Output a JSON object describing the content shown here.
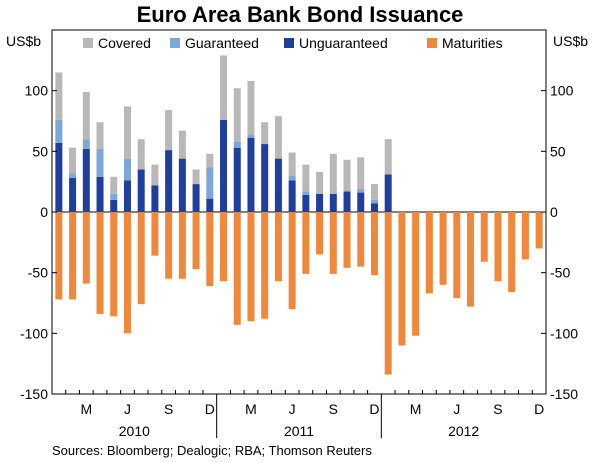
{
  "chart_data": {
    "type": "bar",
    "title": "Euro Area Bank Bond Issuance",
    "ylabel_left": "US$b",
    "ylabel_right": "US$b",
    "ylim": [
      -150,
      150
    ],
    "yticks": [
      100,
      50,
      0,
      -50,
      -100,
      -150
    ],
    "x_month_labels": [
      {
        "label": "M",
        "index": 2
      },
      {
        "label": "J",
        "index": 5
      },
      {
        "label": "S",
        "index": 8
      },
      {
        "label": "D",
        "index": 11
      },
      {
        "label": "M",
        "index": 14
      },
      {
        "label": "J",
        "index": 17
      },
      {
        "label": "S",
        "index": 20
      },
      {
        "label": "D",
        "index": 23
      },
      {
        "label": "M",
        "index": 26
      },
      {
        "label": "J",
        "index": 29
      },
      {
        "label": "S",
        "index": 32
      },
      {
        "label": "D",
        "index": 35
      }
    ],
    "year_labels": [
      {
        "label": "2010",
        "start": 0,
        "end": 12
      },
      {
        "label": "2011",
        "start": 12,
        "end": 24
      },
      {
        "label": "2012",
        "start": 24,
        "end": 36
      }
    ],
    "months": [
      "Jan 2010",
      "Feb 2010",
      "Mar 2010",
      "Apr 2010",
      "May 2010",
      "Jun 2010",
      "Jul 2010",
      "Aug 2010",
      "Sep 2010",
      "Oct 2010",
      "Nov 2010",
      "Dec 2010",
      "Jan 2011",
      "Feb 2011",
      "Mar 2011",
      "Apr 2011",
      "May 2011",
      "Jun 2011",
      "Jul 2011",
      "Aug 2011",
      "Sep 2011",
      "Oct 2011",
      "Nov 2011",
      "Dec 2011",
      "Jan 2012",
      "Feb 2012",
      "Mar 2012",
      "Apr 2012",
      "May 2012",
      "Jun 2012",
      "Jul 2012",
      "Aug 2012",
      "Sep 2012",
      "Oct 2012",
      "Nov 2012",
      "Dec 2012"
    ],
    "series": [
      {
        "name": "Unguaranteed",
        "color": "#1f3f9e",
        "stack": "pos",
        "values": [
          57,
          28,
          52,
          29,
          10,
          26,
          35,
          22,
          51,
          44,
          23,
          11,
          76,
          53,
          61,
          56,
          44,
          26,
          14,
          15,
          15,
          17,
          16,
          7,
          31,
          0,
          0,
          0,
          0,
          0,
          0,
          0,
          0,
          0,
          0,
          0
        ]
      },
      {
        "name": "Guaranteed",
        "color": "#7ba7d9",
        "stack": "pos",
        "values": [
          19,
          4,
          8,
          23,
          5,
          18,
          0,
          0,
          0,
          0,
          0,
          26,
          0,
          5,
          3,
          0,
          0,
          4,
          3,
          0,
          0,
          0,
          3,
          3,
          0,
          0,
          0,
          0,
          0,
          0,
          0,
          0,
          0,
          0,
          0,
          0
        ]
      },
      {
        "name": "Covered",
        "color": "#b8b8b8",
        "stack": "pos",
        "values": [
          39,
          21,
          39,
          22,
          14,
          43,
          25,
          17,
          33,
          23,
          12,
          11,
          53,
          44,
          44,
          18,
          35,
          19,
          22,
          18,
          33,
          26,
          26,
          13,
          29,
          0,
          0,
          0,
          0,
          0,
          0,
          0,
          0,
          0,
          0,
          0
        ]
      },
      {
        "name": "Maturities",
        "color": "#f0883c",
        "stack": "neg",
        "values": [
          -72,
          -72,
          -59,
          -84,
          -86,
          -100,
          -76,
          -36,
          -55,
          -55,
          -47,
          -61,
          -57,
          -93,
          -90,
          -88,
          -57,
          -80,
          -51,
          -35,
          -51,
          -46,
          -45,
          -52,
          -134,
          -110,
          -102,
          -67,
          -60,
          -71,
          -78,
          -41,
          -57,
          -66,
          -39,
          -30
        ]
      }
    ],
    "legend": {
      "placement": "top",
      "order": [
        "Covered",
        "Guaranteed",
        "Unguaranteed",
        "Maturities"
      ]
    },
    "source": "Sources: Bloomberg; Dealogic; RBA; Thomson Reuters"
  }
}
